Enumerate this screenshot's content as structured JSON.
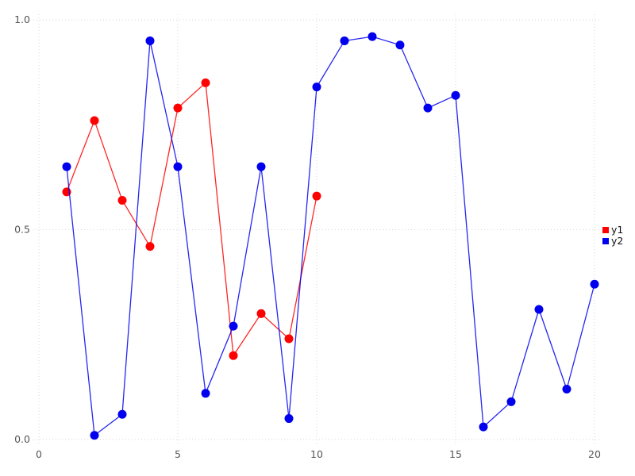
{
  "chart_data": {
    "type": "line",
    "title": "",
    "xlabel": "",
    "ylabel": "",
    "xlim": [
      0,
      20
    ],
    "ylim": [
      0.0,
      1.0
    ],
    "x_ticks": [
      0,
      5,
      10,
      15,
      20
    ],
    "x_tick_labels": [
      "0",
      "5",
      "10",
      "15",
      "20"
    ],
    "y_ticks": [
      0.0,
      0.5,
      1.0
    ],
    "y_tick_labels": [
      "0.0",
      "0.5",
      "1.0"
    ],
    "grid": "dotted",
    "legend_position": "right-middle",
    "series": [
      {
        "name": "y1",
        "color": "#ff0000",
        "x": [
          1,
          2,
          3,
          4,
          5,
          6,
          7,
          8,
          9,
          10
        ],
        "values": [
          0.59,
          0.76,
          0.57,
          0.46,
          0.79,
          0.85,
          0.2,
          0.3,
          0.24,
          0.58
        ]
      },
      {
        "name": "y2",
        "color": "#0000ee",
        "x": [
          1,
          2,
          3,
          4,
          5,
          6,
          7,
          8,
          9,
          10,
          11,
          12,
          13,
          14,
          15,
          16,
          17,
          18,
          19,
          20
        ],
        "values": [
          0.65,
          0.01,
          0.06,
          0.95,
          0.65,
          0.11,
          0.27,
          0.65,
          0.05,
          0.84,
          0.95,
          0.96,
          0.94,
          0.79,
          0.82,
          0.03,
          0.09,
          0.31,
          0.12,
          0.37
        ]
      }
    ],
    "style": {
      "grid_color": "#d6d6e0",
      "tick_label_color": "#555555",
      "legend_text_color": "#111111",
      "marker_radius": 5.5,
      "line_width": 1.3
    }
  }
}
